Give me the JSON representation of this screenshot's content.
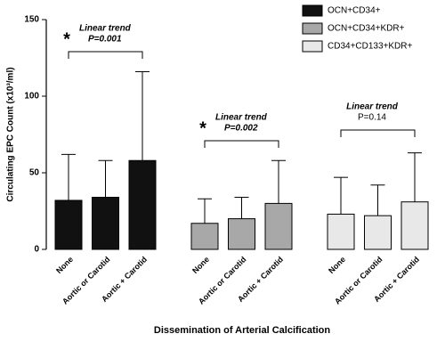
{
  "chart_data": {
    "type": "bar",
    "ylabel": "Circulating EPC Count (x10³/ml)",
    "xlabel": "Dissemination of Arterial Calcification",
    "categories": [
      "None",
      "Aortic or Carotid",
      "Aortic + Carotid"
    ],
    "ylim": [
      0,
      150
    ],
    "yticks": [
      0,
      50,
      100,
      150
    ],
    "series": [
      {
        "name": "OCN+CD34+",
        "color": "#111111",
        "values": [
          32,
          34,
          58
        ],
        "errors": [
          30,
          24,
          58
        ]
      },
      {
        "name": "OCN+CD34+KDR+",
        "color": "#a8a8a8",
        "values": [
          17,
          20,
          30
        ],
        "errors": [
          16,
          14,
          28
        ]
      },
      {
        "name": "CD34+CD133+KDR+",
        "color": "#e8e8e8",
        "values": [
          23,
          22,
          31
        ],
        "errors": [
          24,
          20,
          32
        ]
      }
    ],
    "annotations": [
      {
        "star": "*",
        "label": "Linear trend",
        "p": "P=0.001"
      },
      {
        "star": "*",
        "label": "Linear trend",
        "p": "P=0.002"
      },
      {
        "label": "Linear trend",
        "p": "P=0.14"
      }
    ]
  }
}
